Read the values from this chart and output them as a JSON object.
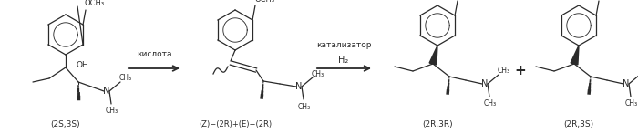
{
  "background_color": "#ffffff",
  "fig_width": 7.0,
  "fig_height": 1.46,
  "dpi": 100,
  "molecule1_label": "(2S,3S)",
  "molecule2_label": "(Z)−(2R)+(E)−(2R)",
  "molecule3_label": "(2R,3R)",
  "molecule4_label": "(2R,3S)",
  "arrow1_label": "кислота",
  "arrow2_label_top": "катализатор",
  "arrow2_label_bottom": "H₂",
  "plus_label": "+",
  "text_color": "#2a2a2a",
  "line_color": "#2a2a2a"
}
